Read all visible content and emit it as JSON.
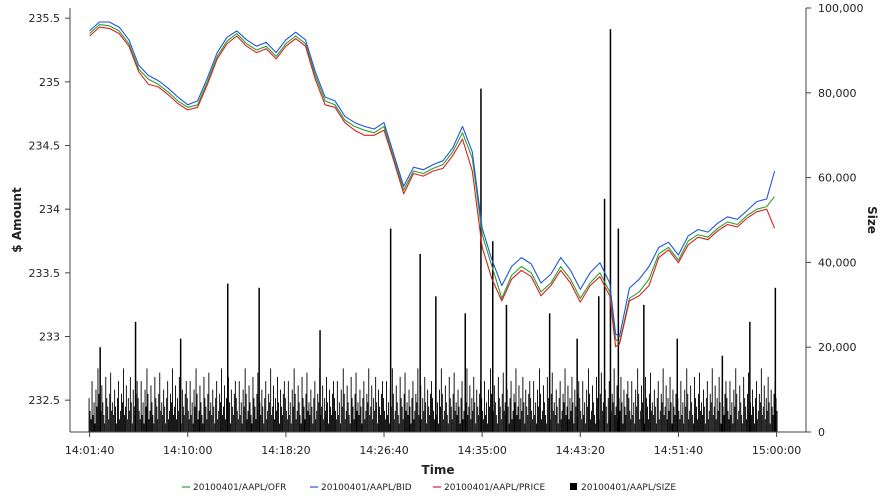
{
  "chart_data": {
    "type": "line",
    "title": "",
    "xlabel": "Time",
    "ylabel_left": "$ Amount",
    "ylabel_right": "Size",
    "x_ticks": [
      "14:01:40",
      "14:10:00",
      "14:18:20",
      "14:26:40",
      "14:35:00",
      "14:43:20",
      "14:51:40",
      "15:00:00"
    ],
    "y_left_ticks": [
      "232.5",
      "233",
      "233.5",
      "234",
      "234.5",
      "235",
      "235.5"
    ],
    "y_right_ticks": [
      "0",
      "20,000",
      "40,000",
      "60,000",
      "80,000",
      "100,000"
    ],
    "x_range": [
      "14:00:00",
      "15:02:30"
    ],
    "y_left_range": [
      232.25,
      235.58
    ],
    "y_right_range": [
      0,
      100000
    ],
    "grid": false,
    "legend_position": "bottom",
    "series": [
      {
        "name": "20100401/AAPL/OFR",
        "axis": "left",
        "color": "#2ca02c",
        "points": [
          [
            "14:01:40",
            235.38
          ],
          [
            "14:02:30",
            235.45
          ],
          [
            "14:03:20",
            235.44
          ],
          [
            "14:04:10",
            235.4
          ],
          [
            "14:05:00",
            235.3
          ],
          [
            "14:05:50",
            235.1
          ],
          [
            "14:06:40",
            235.02
          ],
          [
            "14:07:30",
            234.98
          ],
          [
            "14:08:20",
            234.92
          ],
          [
            "14:09:10",
            234.85
          ],
          [
            "14:10:00",
            234.8
          ],
          [
            "14:10:50",
            234.82
          ],
          [
            "14:11:40",
            235.0
          ],
          [
            "14:12:30",
            235.2
          ],
          [
            "14:13:20",
            235.32
          ],
          [
            "14:14:10",
            235.38
          ],
          [
            "14:15:00",
            235.3
          ],
          [
            "14:15:50",
            235.25
          ],
          [
            "14:16:40",
            235.28
          ],
          [
            "14:17:30",
            235.2
          ],
          [
            "14:18:20",
            235.3
          ],
          [
            "14:19:10",
            235.36
          ],
          [
            "14:20:00",
            235.3
          ],
          [
            "14:20:50",
            235.05
          ],
          [
            "14:21:40",
            234.85
          ],
          [
            "14:22:30",
            234.82
          ],
          [
            "14:23:20",
            234.7
          ],
          [
            "14:24:10",
            234.65
          ],
          [
            "14:25:00",
            234.62
          ],
          [
            "14:25:50",
            234.6
          ],
          [
            "14:26:40",
            234.65
          ],
          [
            "14:27:30",
            234.4
          ],
          [
            "14:28:20",
            234.15
          ],
          [
            "14:29:10",
            234.3
          ],
          [
            "14:30:00",
            234.28
          ],
          [
            "14:30:50",
            234.32
          ],
          [
            "14:31:40",
            234.35
          ],
          [
            "14:32:30",
            234.45
          ],
          [
            "14:33:20",
            234.6
          ],
          [
            "14:34:10",
            234.4
          ],
          [
            "14:35:00",
            233.8
          ],
          [
            "14:35:50",
            233.55
          ],
          [
            "14:36:40",
            233.3
          ],
          [
            "14:37:30",
            233.48
          ],
          [
            "14:38:20",
            233.55
          ],
          [
            "14:39:10",
            233.5
          ],
          [
            "14:40:00",
            233.35
          ],
          [
            "14:40:50",
            233.42
          ],
          [
            "14:41:40",
            233.55
          ],
          [
            "14:42:30",
            233.45
          ],
          [
            "14:43:20",
            233.3
          ],
          [
            "14:44:10",
            233.42
          ],
          [
            "14:45:00",
            233.5
          ],
          [
            "14:45:50",
            233.35
          ],
          [
            "14:46:20",
            232.98
          ],
          [
            "14:46:40",
            232.95
          ],
          [
            "14:47:30",
            233.3
          ],
          [
            "14:48:20",
            233.35
          ],
          [
            "14:49:10",
            233.45
          ],
          [
            "14:50:00",
            233.65
          ],
          [
            "14:50:50",
            233.7
          ],
          [
            "14:51:40",
            233.6
          ],
          [
            "14:52:30",
            233.75
          ],
          [
            "14:53:20",
            233.8
          ],
          [
            "14:54:10",
            233.78
          ],
          [
            "14:55:00",
            233.85
          ],
          [
            "14:55:50",
            233.9
          ],
          [
            "14:56:40",
            233.88
          ],
          [
            "14:57:30",
            233.95
          ],
          [
            "14:58:20",
            234.0
          ],
          [
            "14:59:10",
            234.02
          ],
          [
            "14:59:50",
            234.1
          ]
        ]
      },
      {
        "name": "20100401/AAPL/BID",
        "axis": "left",
        "color": "#1f56d8",
        "points": [
          [
            "14:01:40",
            235.4
          ],
          [
            "14:02:30",
            235.47
          ],
          [
            "14:03:20",
            235.47
          ],
          [
            "14:04:10",
            235.43
          ],
          [
            "14:05:00",
            235.33
          ],
          [
            "14:05:50",
            235.13
          ],
          [
            "14:06:40",
            235.05
          ],
          [
            "14:07:30",
            235.01
          ],
          [
            "14:08:20",
            234.95
          ],
          [
            "14:09:10",
            234.88
          ],
          [
            "14:10:00",
            234.82
          ],
          [
            "14:10:50",
            234.85
          ],
          [
            "14:11:40",
            235.03
          ],
          [
            "14:12:30",
            235.23
          ],
          [
            "14:13:20",
            235.35
          ],
          [
            "14:14:10",
            235.4
          ],
          [
            "14:15:00",
            235.33
          ],
          [
            "14:15:50",
            235.28
          ],
          [
            "14:16:40",
            235.31
          ],
          [
            "14:17:30",
            235.23
          ],
          [
            "14:18:20",
            235.33
          ],
          [
            "14:19:10",
            235.39
          ],
          [
            "14:20:00",
            235.33
          ],
          [
            "14:20:50",
            235.08
          ],
          [
            "14:21:40",
            234.88
          ],
          [
            "14:22:30",
            234.85
          ],
          [
            "14:23:20",
            234.73
          ],
          [
            "14:24:10",
            234.68
          ],
          [
            "14:25:00",
            234.65
          ],
          [
            "14:25:50",
            234.63
          ],
          [
            "14:26:40",
            234.68
          ],
          [
            "14:27:30",
            234.43
          ],
          [
            "14:28:20",
            234.18
          ],
          [
            "14:29:10",
            234.33
          ],
          [
            "14:30:00",
            234.31
          ],
          [
            "14:30:50",
            234.35
          ],
          [
            "14:31:40",
            234.38
          ],
          [
            "14:32:30",
            234.48
          ],
          [
            "14:33:20",
            234.65
          ],
          [
            "14:34:10",
            234.45
          ],
          [
            "14:35:00",
            233.85
          ],
          [
            "14:35:50",
            233.6
          ],
          [
            "14:36:40",
            233.4
          ],
          [
            "14:37:30",
            233.55
          ],
          [
            "14:38:20",
            233.62
          ],
          [
            "14:39:10",
            233.57
          ],
          [
            "14:40:00",
            233.42
          ],
          [
            "14:40:50",
            233.49
          ],
          [
            "14:41:40",
            233.62
          ],
          [
            "14:42:30",
            233.52
          ],
          [
            "14:43:20",
            233.37
          ],
          [
            "14:44:10",
            233.5
          ],
          [
            "14:45:00",
            233.58
          ],
          [
            "14:45:50",
            233.42
          ],
          [
            "14:46:20",
            233.02
          ],
          [
            "14:46:40",
            233.0
          ],
          [
            "14:47:30",
            233.38
          ],
          [
            "14:48:20",
            233.45
          ],
          [
            "14:49:10",
            233.55
          ],
          [
            "14:50:00",
            233.7
          ],
          [
            "14:50:50",
            233.74
          ],
          [
            "14:51:40",
            233.64
          ],
          [
            "14:52:30",
            233.79
          ],
          [
            "14:53:20",
            233.84
          ],
          [
            "14:54:10",
            233.82
          ],
          [
            "14:55:00",
            233.89
          ],
          [
            "14:55:50",
            233.94
          ],
          [
            "14:56:40",
            233.92
          ],
          [
            "14:57:30",
            233.99
          ],
          [
            "14:58:20",
            234.06
          ],
          [
            "14:59:10",
            234.08
          ],
          [
            "14:59:50",
            234.3
          ]
        ]
      },
      {
        "name": "20100401/AAPL/PRICE",
        "axis": "left",
        "color": "#d62020",
        "points": [
          [
            "14:01:40",
            235.36
          ],
          [
            "14:02:30",
            235.43
          ],
          [
            "14:03:20",
            235.42
          ],
          [
            "14:04:10",
            235.38
          ],
          [
            "14:05:00",
            235.28
          ],
          [
            "14:05:50",
            235.08
          ],
          [
            "14:06:40",
            234.98
          ],
          [
            "14:07:30",
            234.96
          ],
          [
            "14:08:20",
            234.9
          ],
          [
            "14:09:10",
            234.83
          ],
          [
            "14:10:00",
            234.78
          ],
          [
            "14:10:50",
            234.8
          ],
          [
            "14:11:40",
            234.98
          ],
          [
            "14:12:30",
            235.18
          ],
          [
            "14:13:20",
            235.3
          ],
          [
            "14:14:10",
            235.36
          ],
          [
            "14:15:00",
            235.28
          ],
          [
            "14:15:50",
            235.23
          ],
          [
            "14:16:40",
            235.26
          ],
          [
            "14:17:30",
            235.18
          ],
          [
            "14:18:20",
            235.28
          ],
          [
            "14:19:10",
            235.34
          ],
          [
            "14:20:00",
            235.28
          ],
          [
            "14:20:50",
            235.02
          ],
          [
            "14:21:40",
            234.82
          ],
          [
            "14:22:30",
            234.8
          ],
          [
            "14:23:20",
            234.68
          ],
          [
            "14:24:10",
            234.62
          ],
          [
            "14:25:00",
            234.58
          ],
          [
            "14:25:50",
            234.58
          ],
          [
            "14:26:40",
            234.62
          ],
          [
            "14:27:30",
            234.38
          ],
          [
            "14:28:20",
            234.12
          ],
          [
            "14:29:10",
            234.28
          ],
          [
            "14:30:00",
            234.26
          ],
          [
            "14:30:50",
            234.3
          ],
          [
            "14:31:40",
            234.32
          ],
          [
            "14:32:30",
            234.42
          ],
          [
            "14:33:20",
            234.55
          ],
          [
            "14:34:10",
            234.3
          ],
          [
            "14:35:00",
            233.7
          ],
          [
            "14:35:50",
            233.45
          ],
          [
            "14:36:40",
            233.28
          ],
          [
            "14:37:30",
            233.45
          ],
          [
            "14:38:20",
            233.52
          ],
          [
            "14:39:10",
            233.47
          ],
          [
            "14:40:00",
            233.32
          ],
          [
            "14:40:50",
            233.4
          ],
          [
            "14:41:40",
            233.52
          ],
          [
            "14:42:30",
            233.42
          ],
          [
            "14:43:20",
            233.27
          ],
          [
            "14:44:10",
            233.4
          ],
          [
            "14:45:00",
            233.47
          ],
          [
            "14:45:50",
            233.32
          ],
          [
            "14:46:20",
            232.92
          ],
          [
            "14:46:40",
            232.94
          ],
          [
            "14:47:30",
            233.28
          ],
          [
            "14:48:20",
            233.32
          ],
          [
            "14:49:10",
            233.4
          ],
          [
            "14:50:00",
            233.62
          ],
          [
            "14:50:50",
            233.68
          ],
          [
            "14:51:40",
            233.58
          ],
          [
            "14:52:30",
            233.72
          ],
          [
            "14:53:20",
            233.78
          ],
          [
            "14:54:10",
            233.76
          ],
          [
            "14:55:00",
            233.83
          ],
          [
            "14:55:50",
            233.88
          ],
          [
            "14:56:40",
            233.86
          ],
          [
            "14:57:30",
            233.93
          ],
          [
            "14:58:20",
            233.98
          ],
          [
            "14:59:10",
            234.0
          ],
          [
            "14:59:50",
            233.85
          ]
        ]
      },
      {
        "name": "20100401/AAPL/SIZE",
        "axis": "right",
        "color": "#000000",
        "type": "bar",
        "approximate": true,
        "base_start": "14:01:35",
        "base_step_seconds": 5,
        "base_values": [
          8000,
          5000,
          3000,
          12000,
          4000,
          7000,
          2000,
          10000,
          6000,
          15000,
          9000,
          3000,
          5000,
          11000,
          7000,
          4000,
          2000,
          13000,
          8000,
          6000,
          3000,
          9000,
          14000,
          5000,
          7000,
          4000,
          10000,
          6000,
          2000,
          8000,
          12000,
          3000,
          5000,
          9000,
          7000,
          15000,
          4000,
          6000,
          11000,
          3000,
          8000,
          5000,
          13000,
          7000,
          2000,
          10000,
          6000,
          4000,
          9000,
          12000
        ],
        "peaks": [
          [
            "14:02:30",
            20000
          ],
          [
            "14:05:30",
            26000
          ],
          [
            "14:09:20",
            22000
          ],
          [
            "14:13:20",
            35000
          ],
          [
            "14:16:00",
            34000
          ],
          [
            "14:21:10",
            24000
          ],
          [
            "14:27:10",
            48000
          ],
          [
            "14:29:40",
            42000
          ],
          [
            "14:31:00",
            32000
          ],
          [
            "14:33:30",
            28000
          ],
          [
            "14:34:50",
            81000
          ],
          [
            "14:35:50",
            45000
          ],
          [
            "14:37:00",
            30000
          ],
          [
            "14:40:40",
            28000
          ],
          [
            "14:43:00",
            22000
          ],
          [
            "14:44:50",
            32000
          ],
          [
            "14:45:20",
            55000
          ],
          [
            "14:45:50",
            95000
          ],
          [
            "14:46:30",
            48000
          ],
          [
            "14:48:40",
            30000
          ],
          [
            "14:51:30",
            22000
          ],
          [
            "14:55:20",
            18000
          ],
          [
            "14:57:40",
            26000
          ],
          [
            "14:59:50",
            34000
          ]
        ]
      }
    ]
  }
}
